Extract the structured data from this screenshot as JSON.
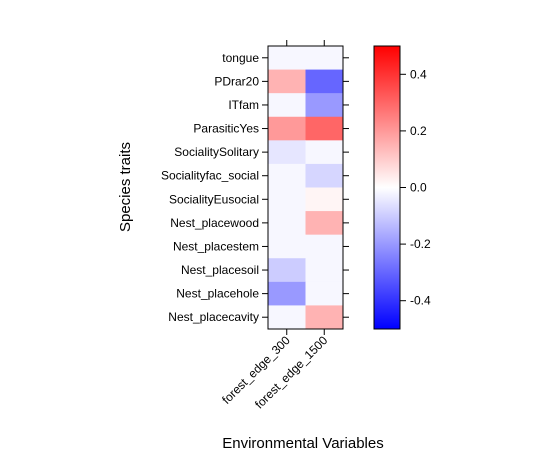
{
  "chart_data": {
    "type": "heatmap",
    "xlabel": "Environmental Variables",
    "ylabel": "Species traits",
    "columns": [
      "forest_edge_300",
      "forest_edge_1500"
    ],
    "rows": [
      "tongue",
      "PDrar20",
      "ITfam",
      "ParasiticYes",
      "SocialitySolitary",
      "Socialityfac_social",
      "SocialityEusocial",
      "Nest_placewood",
      "Nest_placestem",
      "Nest_placesoil",
      "Nest_placehole",
      "Nest_placecavity"
    ],
    "values": [
      [
        0.0,
        0.0
      ],
      [
        0.15,
        -0.3
      ],
      [
        0.0,
        -0.2
      ],
      [
        0.2,
        0.3
      ],
      [
        -0.05,
        0.0
      ],
      [
        0.0,
        -0.08
      ],
      [
        0.0,
        0.02
      ],
      [
        0.0,
        0.15
      ],
      [
        0.0,
        0.0
      ],
      [
        -0.1,
        0.0
      ],
      [
        -0.2,
        0.0
      ],
      [
        0.0,
        0.15
      ]
    ],
    "colorbar": {
      "range": [
        -0.5,
        0.5
      ],
      "ticks": [
        -0.4,
        -0.2,
        0.0,
        0.2,
        0.4
      ],
      "tick_labels": [
        "-0.4",
        "-0.2",
        "0.0",
        "0.2",
        "0.4"
      ],
      "low_color": "#0000ff",
      "mid_color": "#ffffff",
      "high_color": "#ff0000"
    },
    "background_color": "#f7f7ff",
    "grid": false
  }
}
